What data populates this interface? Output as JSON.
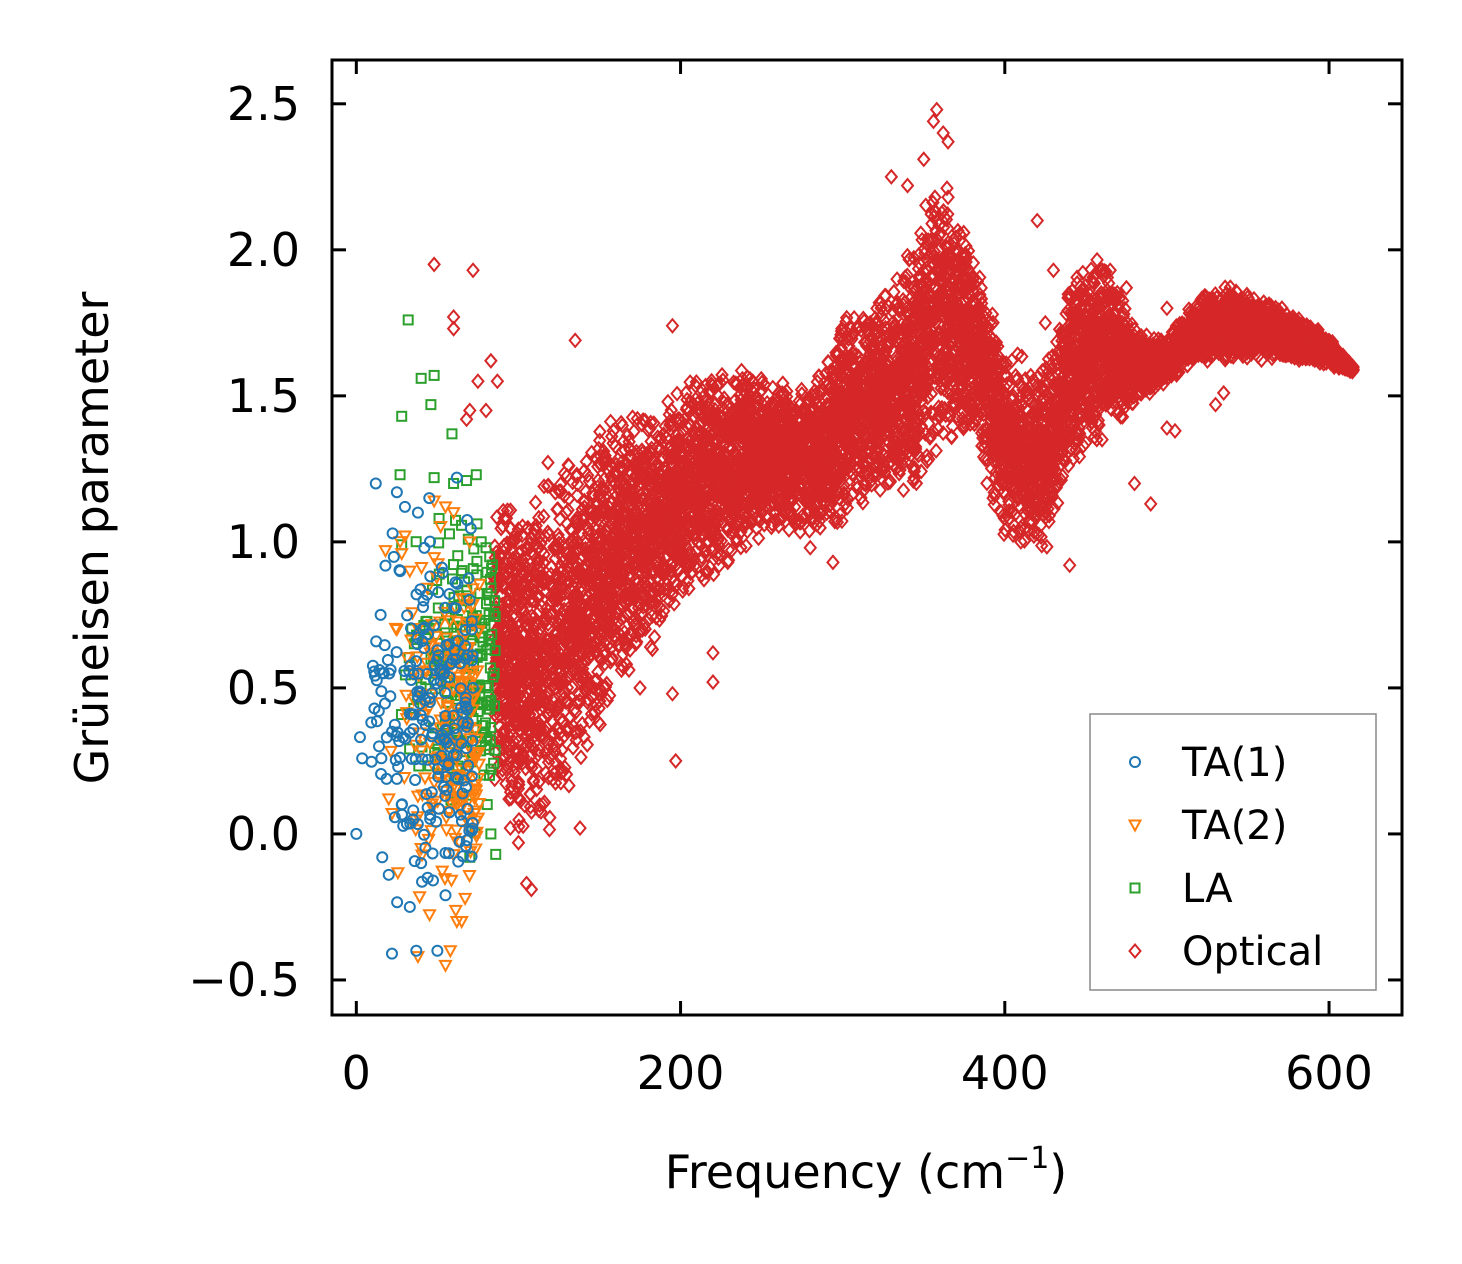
{
  "chart_data": {
    "type": "scatter",
    "title": "",
    "xlabel": "Frequency (cm",
    "xlabel_sup": "−1",
    "xlabel_tail": ")",
    "ylabel": "Grüneisen parameter",
    "xlim": [
      -15,
      645
    ],
    "ylim": [
      -0.62,
      2.65
    ],
    "x_ticks": [
      0,
      200,
      400,
      600
    ],
    "x_tick_labels": [
      "0",
      "200",
      "400",
      "600"
    ],
    "y_ticks": [
      -0.5,
      0.0,
      0.5,
      1.0,
      1.5,
      2.0,
      2.5
    ],
    "y_tick_labels": [
      "−0.5",
      "0.0",
      "0.5",
      "1.0",
      "1.5",
      "2.0",
      "2.5"
    ],
    "grid": false,
    "legend_position": "bottom-right",
    "series": [
      {
        "name": "TA(1)",
        "marker": "circle",
        "color": "#1f77b4",
        "cloud": {
          "x": [
            0,
            72
          ],
          "y": [
            -0.4,
            1.22
          ]
        },
        "points": [
          [
            0,
            0.0
          ],
          [
            12,
            1.2
          ],
          [
            15,
            0.75
          ],
          [
            17,
            0.55
          ],
          [
            14,
            0.3
          ],
          [
            16,
            -0.08
          ],
          [
            20,
            -0.14
          ],
          [
            22,
            -0.41
          ],
          [
            37,
            -0.4
          ],
          [
            50,
            -0.4
          ],
          [
            33,
            -0.25
          ],
          [
            55,
            -0.21
          ],
          [
            44,
            -0.15
          ],
          [
            25,
            1.17
          ],
          [
            30,
            1.12
          ],
          [
            38,
            1.1
          ],
          [
            45,
            1.15
          ],
          [
            62,
            1.22
          ],
          [
            27,
            0.9
          ],
          [
            22,
            0.35
          ],
          [
            28,
            0.1
          ],
          [
            35,
            0.05
          ],
          [
            40,
            -0.1
          ]
        ]
      },
      {
        "name": "TA(2)",
        "marker": "triangle-down",
        "color": "#ff7f0e",
        "cloud": {
          "x": [
            18,
            76
          ],
          "y": [
            -0.45,
            1.16
          ]
        },
        "points": [
          [
            18,
            0.97
          ],
          [
            20,
            0.12
          ],
          [
            22,
            0.07
          ],
          [
            25,
            0.7
          ],
          [
            28,
            0.96
          ],
          [
            30,
            1.02
          ],
          [
            38,
            -0.42
          ],
          [
            55,
            -0.45
          ],
          [
            62,
            -0.3
          ],
          [
            65,
            -0.3
          ],
          [
            58,
            -0.4
          ],
          [
            48,
            1.14
          ],
          [
            55,
            1.12
          ],
          [
            60,
            1.1
          ],
          [
            70,
            1.0
          ],
          [
            40,
            -0.05
          ],
          [
            33,
            0.9
          ]
        ]
      },
      {
        "name": "LA",
        "marker": "square",
        "color": "#2ca02c",
        "cloud": {
          "x": [
            27,
            86
          ],
          "y": [
            -0.08,
            1.25
          ]
        },
        "points": [
          [
            32,
            1.76
          ],
          [
            40,
            1.56
          ],
          [
            48,
            1.57
          ],
          [
            28,
            1.43
          ],
          [
            46,
            1.47
          ],
          [
            59,
            1.37
          ],
          [
            27,
            1.23
          ],
          [
            48,
            1.22
          ],
          [
            60,
            1.2
          ],
          [
            68,
            1.21
          ],
          [
            74,
            1.23
          ],
          [
            28,
            0.99
          ],
          [
            80,
            0.98
          ],
          [
            82,
            0.8
          ],
          [
            85,
            0.55
          ],
          [
            83,
            0.0
          ],
          [
            86,
            -0.07
          ],
          [
            70,
            -0.08
          ]
        ]
      },
      {
        "name": "Optical",
        "marker": "diamond",
        "color": "#d62728",
        "band": {
          "x": [
            85,
            100,
            120,
            140,
            160,
            180,
            200,
            220,
            240,
            260,
            280,
            300,
            320,
            340,
            360,
            380,
            400,
            415,
            425,
            440,
            460,
            480,
            500,
            520,
            540,
            560,
            580,
            600,
            615
          ],
          "y_low": [
            0.15,
            0.0,
            -0.05,
            0.2,
            0.45,
            0.6,
            0.75,
            0.85,
            0.95,
            1.05,
            1.0,
            1.05,
            1.15,
            1.12,
            1.3,
            1.35,
            1.0,
            0.95,
            0.95,
            1.25,
            1.35,
            1.45,
            1.55,
            1.6,
            1.62,
            1.62,
            1.62,
            1.6,
            1.58
          ],
          "y_high": [
            1.2,
            1.15,
            1.3,
            1.35,
            1.45,
            1.5,
            1.55,
            1.6,
            1.6,
            1.55,
            1.55,
            1.8,
            1.85,
            2.0,
            2.35,
            2.0,
            1.7,
            1.65,
            1.6,
            1.95,
            2.0,
            1.75,
            1.7,
            1.85,
            1.88,
            1.84,
            1.78,
            1.7,
            1.6
          ]
        },
        "points": [
          [
            48,
            1.95
          ],
          [
            72,
            1.93
          ],
          [
            60,
            1.77
          ],
          [
            60,
            1.73
          ],
          [
            83,
            1.62
          ],
          [
            87,
            1.55
          ],
          [
            75,
            1.55
          ],
          [
            68,
            1.42
          ],
          [
            70,
            1.45
          ],
          [
            80,
            1.45
          ],
          [
            135,
            1.69
          ],
          [
            195,
            1.74
          ],
          [
            197,
            0.25
          ],
          [
            220,
            0.52
          ],
          [
            220,
            0.62
          ],
          [
            95,
            0.02
          ],
          [
            100,
            -0.03
          ],
          [
            105,
            -0.17
          ],
          [
            108,
            -0.19
          ],
          [
            138,
            0.02
          ],
          [
            175,
            0.5
          ],
          [
            195,
            0.48
          ],
          [
            280,
            0.98
          ],
          [
            294,
            0.93
          ],
          [
            350,
            2.31
          ],
          [
            356,
            2.44
          ],
          [
            358,
            2.48
          ],
          [
            362,
            2.4
          ],
          [
            365,
            2.37
          ],
          [
            330,
            2.25
          ],
          [
            340,
            2.22
          ],
          [
            365,
            2.18
          ],
          [
            420,
            2.1
          ],
          [
            430,
            1.93
          ],
          [
            465,
            1.93
          ],
          [
            475,
            1.87
          ],
          [
            500,
            1.8
          ],
          [
            385,
            1.73
          ],
          [
            425,
            1.75
          ],
          [
            440,
            0.92
          ],
          [
            445,
            1.5
          ],
          [
            460,
            1.35
          ],
          [
            480,
            1.2
          ],
          [
            490,
            1.13
          ],
          [
            500,
            1.39
          ],
          [
            505,
            1.38
          ],
          [
            530,
            1.47
          ],
          [
            535,
            1.51
          ]
        ],
        "n_cloud": 9000
      }
    ]
  }
}
